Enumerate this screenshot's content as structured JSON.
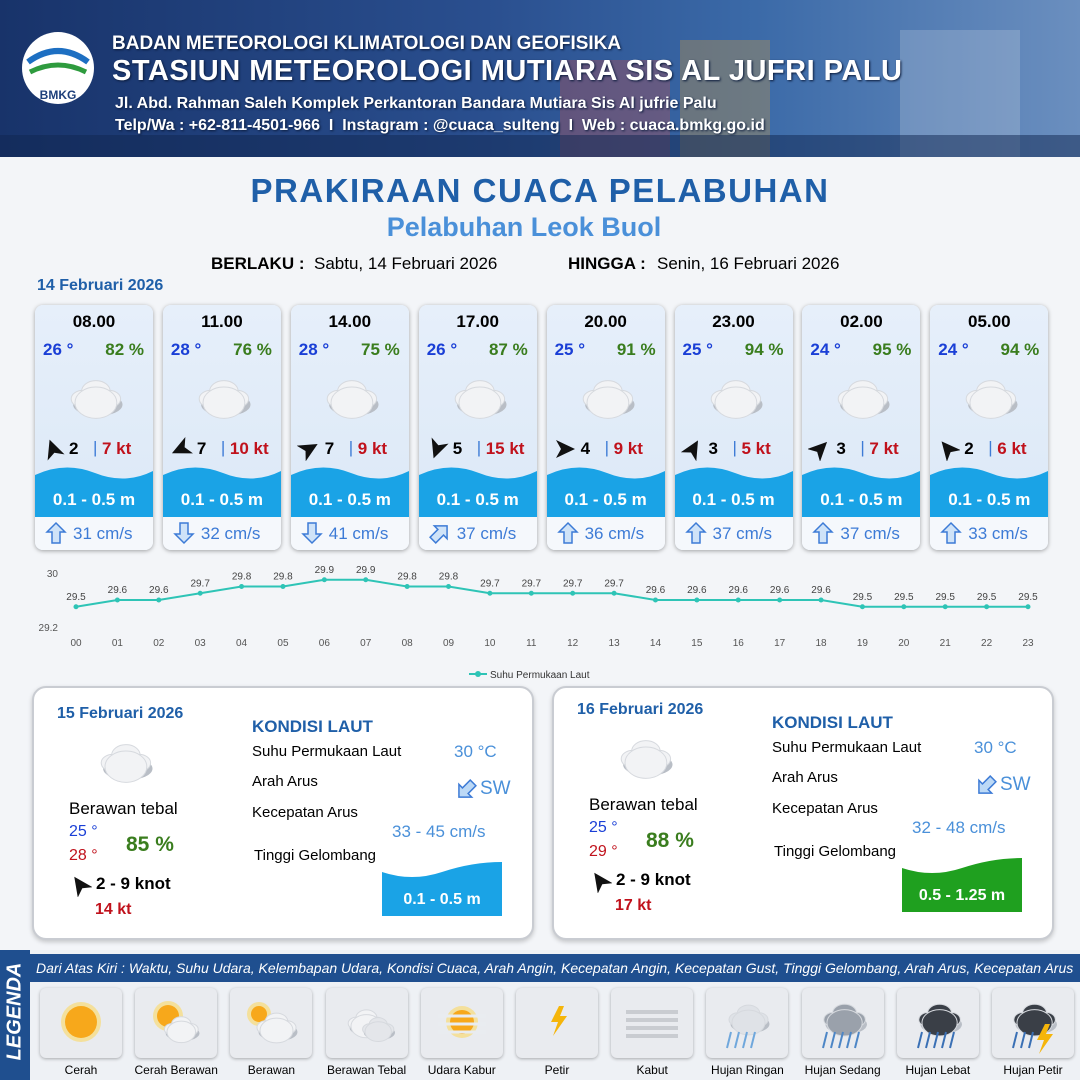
{
  "header": {
    "logo_text": "BMKG",
    "agency": "BADAN METEOROLOGI KLIMATOLOGI DAN GEOFISIKA",
    "station": "STASIUN METEOROLOGI MUTIARA SIS AL JUFRI PALU",
    "address": "Jl. Abd. Rahman Saleh Komplek Perkantoran Bandara Mutiara Sis Al jufrie Palu",
    "contact": "Telp/Wa : +62-811-4501-966  I  Instagram : @cuaca_sulteng  I  Web : cuaca.bmkg.go.id"
  },
  "title": "PRAKIRAAN CUACA PELABUHAN",
  "subtitle": "Pelabuhan Leok Buol",
  "validity": {
    "from_label": "BERLAKU :",
    "from": "Sabtu, 14 Februari 2026",
    "to_label": "HINGGA :",
    "to": "Senin, 16 Februari 2026"
  },
  "day1": {
    "date": "14 Februari 2026",
    "slots": [
      {
        "time": "08.00",
        "temp": "26 °",
        "humidity": "82 %",
        "wind": "2",
        "gust": "7 kt",
        "wave": "0.1 - 0.5 m",
        "current": "31 cm/s"
      },
      {
        "time": "11.00",
        "temp": "28 °",
        "humidity": "76 %",
        "wind": "7",
        "gust": "10 kt",
        "wave": "0.1 - 0.5 m",
        "current": "32 cm/s"
      },
      {
        "time": "14.00",
        "temp": "28 °",
        "humidity": "75 %",
        "wind": "7",
        "gust": "9 kt",
        "wave": "0.1 - 0.5 m",
        "current": "41 cm/s"
      },
      {
        "time": "17.00",
        "temp": "26 °",
        "humidity": "87 %",
        "wind": "5",
        "gust": "15 kt",
        "wave": "0.1 - 0.5 m",
        "current": "37 cm/s"
      },
      {
        "time": "20.00",
        "temp": "25 °",
        "humidity": "91 %",
        "wind": "4",
        "gust": "9 kt",
        "wave": "0.1 - 0.5 m",
        "current": "36 cm/s"
      },
      {
        "time": "23.00",
        "temp": "25 °",
        "humidity": "94 %",
        "wind": "3",
        "gust": "5 kt",
        "wave": "0.1 - 0.5 m",
        "current": "37 cm/s"
      },
      {
        "time": "02.00",
        "temp": "24 °",
        "humidity": "95 %",
        "wind": "3",
        "gust": "7 kt",
        "wave": "0.1 - 0.5 m",
        "current": "37 cm/s"
      },
      {
        "time": "05.00",
        "temp": "24 °",
        "humidity": "94 %",
        "wind": "2",
        "gust": "6 kt",
        "wave": "0.1 - 0.5 m",
        "current": "33 cm/s"
      }
    ]
  },
  "chart_data": {
    "type": "line",
    "categories": [
      "00",
      "01",
      "02",
      "03",
      "04",
      "05",
      "06",
      "07",
      "08",
      "09",
      "10",
      "11",
      "12",
      "13",
      "14",
      "15",
      "16",
      "17",
      "18",
      "19",
      "20",
      "21",
      "22",
      "23"
    ],
    "series": [
      {
        "name": "Suhu Permukaan Laut",
        "color": "#2ec4b6",
        "values": [
          29.5,
          29.6,
          29.6,
          29.7,
          29.8,
          29.8,
          29.9,
          29.9,
          29.8,
          29.8,
          29.7,
          29.7,
          29.7,
          29.7,
          29.6,
          29.6,
          29.6,
          29.6,
          29.6,
          29.5,
          29.5,
          29.5,
          29.5,
          29.5
        ]
      }
    ],
    "ylim": [
      29.2,
      30
    ],
    "yticks": [
      29.2,
      30
    ],
    "grid": false,
    "legend": "bottom"
  },
  "days": [
    {
      "date": "15 Februari 2026",
      "condition": "Berawan tebal",
      "temp_min": "25 °",
      "temp_max": "28 °",
      "humidity": "85 %",
      "wind": "2 - 9 knot",
      "gust": "14 kt",
      "sea_heading": "KONDISI LAUT",
      "sst_label": "Suhu Permukaan Laut",
      "sst": "30 °C",
      "current_dir_label": "Arah Arus",
      "current_dir": "SW",
      "current_speed_label": "Kecepatan Arus",
      "current_speed": "33 - 45 cm/s",
      "wave_label": "Tinggi Gelombang",
      "wave": "0.1 - 0.5 m"
    },
    {
      "date": "16 Februari 2026",
      "condition": "Berawan tebal",
      "temp_min": "25 °",
      "temp_max": "29 °",
      "humidity": "88 %",
      "wind": "2 - 9 knot",
      "gust": "17 kt",
      "sea_heading": "KONDISI LAUT",
      "sst_label": "Suhu Permukaan Laut",
      "sst": "30 °C",
      "current_dir_label": "Arah Arus",
      "current_dir": "SW",
      "current_speed_label": "Kecepatan Arus",
      "current_speed": "32 - 48 cm/s",
      "wave_label": "Tinggi Gelombang",
      "wave": "0.5 - 1.25 m"
    }
  ],
  "legend": {
    "title": "LEGENDA",
    "description": "Dari Atas Kiri : Waktu, Suhu Udara, Kelembapan Udara, Kondisi Cuaca, Arah Angin, Kecepatan Angin, Kecepatan Gust, Tinggi Gelombang, Arah Arus, Kecepatan Arus",
    "items": [
      "Cerah",
      "Cerah Berawan",
      "Berawan",
      "Berawan Tebal",
      "Udara Kabur",
      "Petir",
      "Kabut",
      "Hujan Ringan",
      "Hujan Sedang",
      "Hujan Lebat",
      "Hujan Petir"
    ]
  }
}
